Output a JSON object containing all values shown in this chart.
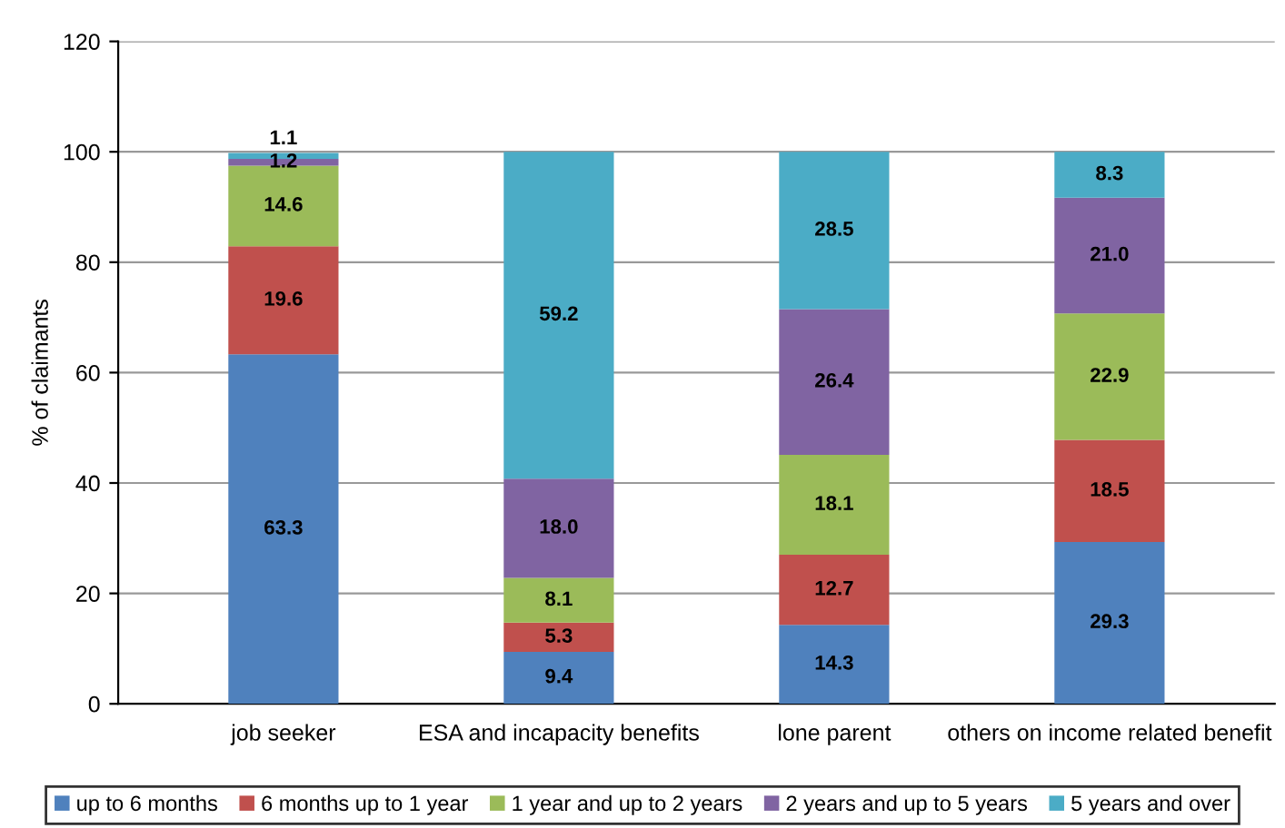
{
  "chart_data": {
    "type": "bar",
    "stacked": true,
    "ylabel": "% of claimants",
    "categories": [
      "job seeker",
      "ESA and incapacity benefits",
      "lone parent",
      "others on income related benefit"
    ],
    "series": [
      {
        "name": "up to 6 months",
        "color": "#4f81bd",
        "values": [
          63.3,
          9.4,
          14.3,
          29.3
        ],
        "value_labels": [
          "63.3",
          "9.4",
          "14.3",
          "29.3"
        ]
      },
      {
        "name": "6 months up to 1 year",
        "color": "#c0504d",
        "values": [
          19.6,
          5.3,
          12.7,
          18.5
        ],
        "value_labels": [
          "19.6",
          "5.3",
          "12.7",
          "18.5"
        ]
      },
      {
        "name": "1 year and up to 2 years",
        "color": "#9bbb59",
        "values": [
          14.6,
          8.1,
          18.1,
          22.9
        ],
        "value_labels": [
          "14.6",
          "8.1",
          "18.1",
          "22.9"
        ]
      },
      {
        "name": "2 years and up to 5 years",
        "color": "#8064a2",
        "values": [
          1.2,
          18,
          26.4,
          21
        ],
        "value_labels": [
          "1.2",
          "18.0",
          "26.4",
          "21.0"
        ]
      },
      {
        "name": "5 years and over",
        "color": "#4bacc6",
        "values": [
          1.1,
          59.2,
          28.5,
          8.3
        ],
        "value_labels": [
          "1.1",
          "59.2",
          "28.5",
          "8.3"
        ]
      }
    ],
    "ylim": [
      0,
      120
    ],
    "yticks": [
      0,
      20,
      40,
      60,
      80,
      100,
      120
    ],
    "grid": "y",
    "legend": "bottom"
  }
}
